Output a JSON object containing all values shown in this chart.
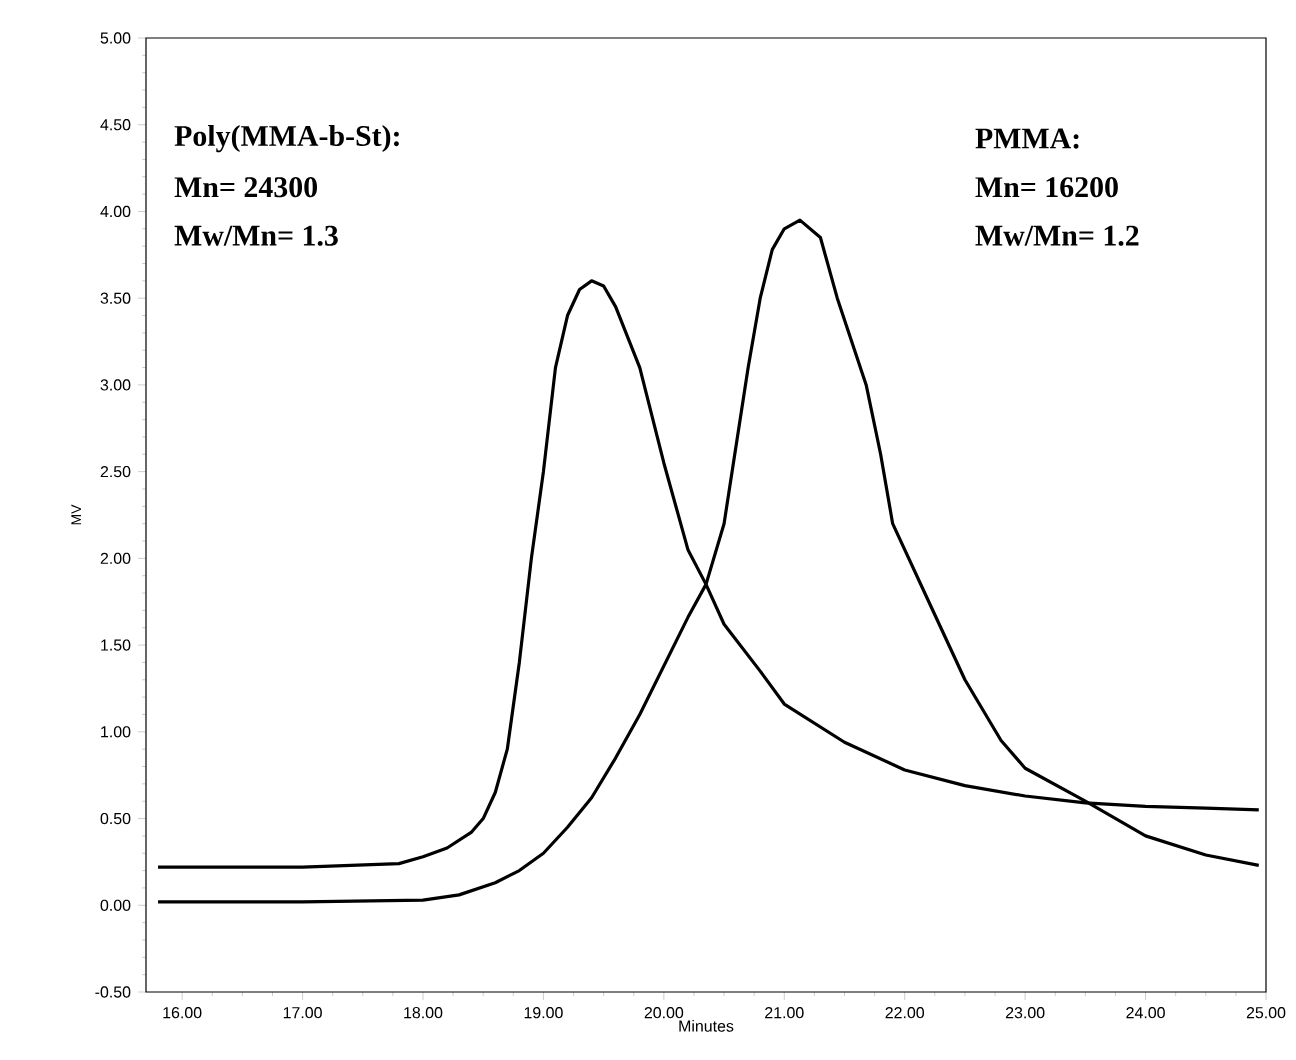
{
  "chart_data": {
    "type": "line",
    "xlabel": "Minutes",
    "ylabel": "MV",
    "annotations": [
      "Poly(MMA-b-St):",
      "Mn= 24300",
      "Mw/Mn= 1.3",
      "PMMA:",
      "Mn= 16200",
      "Mw/Mn= 1.2"
    ],
    "xlim": [
      15.7,
      25.0
    ],
    "ylim": [
      -0.5,
      5.0
    ],
    "xticks": [
      {
        "value": 16,
        "label": "16.00"
      },
      {
        "value": 17,
        "label": "17.00"
      },
      {
        "value": 18,
        "label": "18.00"
      },
      {
        "value": 19,
        "label": "19.00"
      },
      {
        "value": 20,
        "label": "20.00"
      },
      {
        "value": 21,
        "label": "21.00"
      },
      {
        "value": 22,
        "label": "22.00"
      },
      {
        "value": 23,
        "label": "23.00"
      },
      {
        "value": 24,
        "label": "24.00"
      },
      {
        "value": 25,
        "label": "25.00"
      }
    ],
    "yticks": [
      {
        "value": -0.5,
        "label": "-0.50"
      },
      {
        "value": 0,
        "label": "0.00"
      },
      {
        "value": 0.5,
        "label": "0.50"
      },
      {
        "value": 1,
        "label": "1.00"
      },
      {
        "value": 1.5,
        "label": "1.50"
      },
      {
        "value": 2,
        "label": "2.00"
      },
      {
        "value": 2.5,
        "label": "2.50"
      },
      {
        "value": 3,
        "label": "3.00"
      },
      {
        "value": 3.5,
        "label": "3.50"
      },
      {
        "value": 4,
        "label": "4.00"
      },
      {
        "value": 4.5,
        "label": "4.50"
      },
      {
        "value": 5,
        "label": "5.00"
      }
    ],
    "grid": false,
    "marker": "none",
    "line_style": "solid",
    "series": [
      {
        "color": "#000000",
        "x": [
          15.8,
          17.0,
          17.8,
          18.0,
          18.2,
          18.4,
          18.5,
          18.6,
          18.7,
          18.8,
          18.9,
          19.0,
          19.1,
          19.2,
          19.3,
          19.4,
          19.5,
          19.6,
          19.8,
          20.0,
          20.2,
          20.35,
          20.5,
          20.8,
          21.0,
          21.5,
          22.0,
          22.5,
          23.0,
          23.5,
          24.0,
          24.5,
          24.94
        ],
        "values": [
          0.22,
          0.22,
          0.24,
          0.28,
          0.33,
          0.42,
          0.5,
          0.65,
          0.9,
          1.4,
          2.0,
          2.5,
          3.1,
          3.4,
          3.55,
          3.6,
          3.57,
          3.45,
          3.1,
          2.55,
          2.05,
          1.85,
          1.62,
          1.35,
          1.16,
          0.94,
          0.78,
          0.69,
          0.63,
          0.59,
          0.57,
          0.56,
          0.55
        ]
      },
      {
        "color": "#000000",
        "x": [
          15.8,
          17.0,
          18.0,
          18.3,
          18.6,
          18.8,
          19.0,
          19.2,
          19.4,
          19.6,
          19.8,
          20.0,
          20.2,
          20.35,
          20.5,
          20.6,
          20.7,
          20.8,
          20.9,
          21.0,
          21.13,
          21.3,
          21.44,
          21.68,
          21.8,
          21.9,
          22.2,
          22.5,
          22.8,
          23.0,
          23.5,
          24.0,
          24.5,
          24.94
        ],
        "values": [
          0.02,
          0.02,
          0.03,
          0.06,
          0.13,
          0.2,
          0.3,
          0.45,
          0.62,
          0.85,
          1.1,
          1.38,
          1.66,
          1.85,
          2.2,
          2.65,
          3.1,
          3.5,
          3.78,
          3.9,
          3.95,
          3.85,
          3.5,
          3.0,
          2.6,
          2.2,
          1.75,
          1.3,
          0.95,
          0.79,
          0.6,
          0.4,
          0.29,
          0.23
        ]
      }
    ]
  }
}
